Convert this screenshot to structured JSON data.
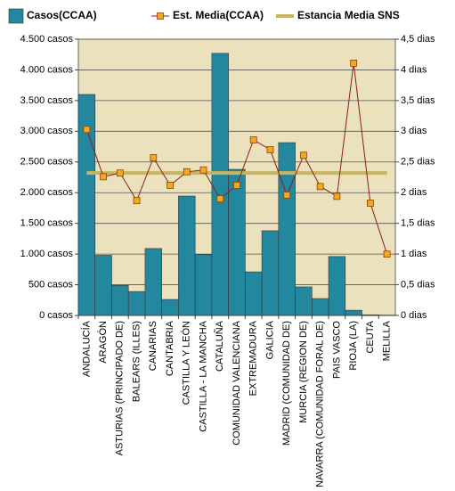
{
  "chart_data": {
    "type": "combo",
    "categories": [
      "ANDALUCÍA",
      "ARAGÓN",
      "ASTURIAS (PRINCIPADO DE)",
      "BALEARS (ILLES)",
      "CANARIAS",
      "CANTABRIA",
      "CASTILLA Y LEÓN",
      "CASTILLA - LA MANCHA",
      "CATALUÑA",
      "COMUNIDAD VALENCIANA",
      "EXTREMADURA",
      "GALICIA",
      "MADRID (COMUNIDAD DE)",
      "MURCIA (REGION DE)",
      "NAVARRA (COMUNIDAD FORAL DE)",
      "PAIS VASCO",
      "RIOJA (LA)",
      "CEUTA",
      "MELILLA"
    ],
    "series": [
      {
        "name": "Casos(CCAA)",
        "type": "bar",
        "color": "#23889e",
        "values": [
          3600,
          980,
          490,
          390,
          1090,
          260,
          1945,
          990,
          4270,
          2380,
          710,
          1380,
          2815,
          465,
          275,
          960,
          85,
          10,
          5
        ]
      },
      {
        "name": "Est. Media(CCAA)",
        "type": "line",
        "axis": "y2",
        "color": "#8b1c1c",
        "marker_color": "#f5a623",
        "values": [
          3.03,
          2.26,
          2.32,
          1.87,
          2.57,
          2.12,
          2.34,
          2.37,
          1.9,
          2.12,
          2.86,
          2.7,
          1.96,
          2.61,
          2.1,
          1.94,
          4.11,
          1.83,
          1.0
        ]
      },
      {
        "name": "Estancia Media SNS",
        "type": "line",
        "axis": "y2",
        "color": "#c8b560",
        "values": [
          2.32,
          2.32,
          2.32,
          2.32,
          2.32,
          2.32,
          2.32,
          2.32,
          2.32,
          2.32,
          2.32,
          2.32,
          2.32,
          2.32,
          2.32,
          2.32,
          2.32,
          2.32,
          2.32
        ]
      }
    ],
    "ylim": [
      0,
      4500
    ],
    "yticks": [
      {
        "value": 0,
        "label": "0 casos"
      },
      {
        "value": 500,
        "label": "500 casos"
      },
      {
        "value": 1000,
        "label": "1.000 casos"
      },
      {
        "value": 1500,
        "label": "1.500 casos"
      },
      {
        "value": 2000,
        "label": "2.000 casos"
      },
      {
        "value": 2500,
        "label": "2.500 casos"
      },
      {
        "value": 3000,
        "label": "3.000 casos"
      },
      {
        "value": 3500,
        "label": "3.500 casos"
      },
      {
        "value": 4000,
        "label": "4.000 casos"
      },
      {
        "value": 4500,
        "label": "4.500 casos"
      }
    ],
    "y2lim": [
      0,
      4.5
    ],
    "y2ticks": [
      {
        "value": 0,
        "label": "0 dias"
      },
      {
        "value": 0.5,
        "label": "0,5 dias"
      },
      {
        "value": 1,
        "label": "1 dias"
      },
      {
        "value": 1.5,
        "label": "1,5 dias"
      },
      {
        "value": 2,
        "label": "2 dias"
      },
      {
        "value": 2.5,
        "label": "2,5 dias"
      },
      {
        "value": 3,
        "label": "3 dias"
      },
      {
        "value": 3.5,
        "label": "3,5 dias"
      },
      {
        "value": 4,
        "label": "4 dias"
      },
      {
        "value": 4.5,
        "label": "4,5 dias"
      }
    ],
    "grid": true,
    "plot_background": "#ebe1bd",
    "legend": "top"
  }
}
